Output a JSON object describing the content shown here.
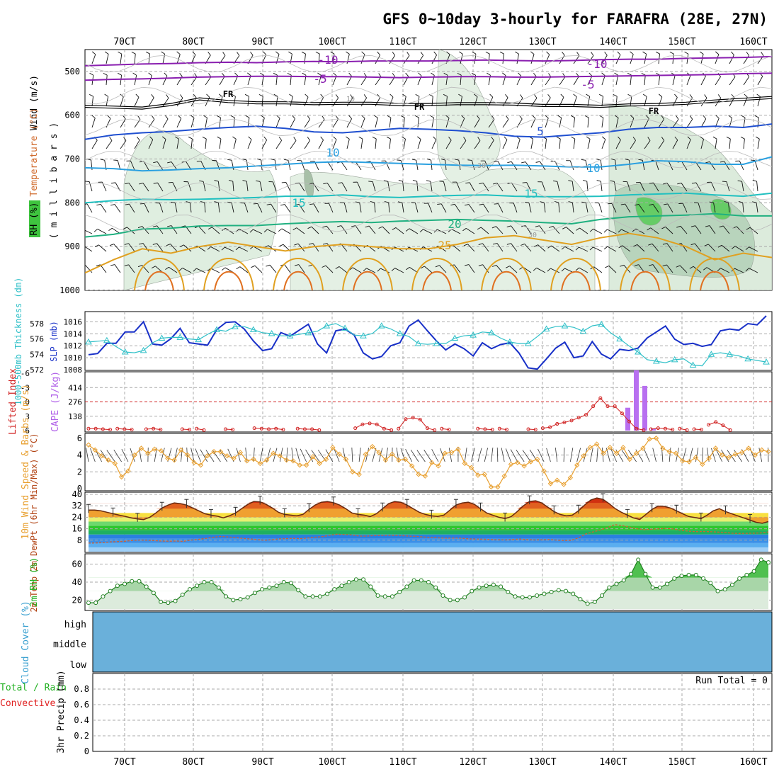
{
  "title": "GFS 0~10day 3-hourly for FARAFRA (28E, 27N)",
  "x_ticks": [
    "70CT",
    "80CT",
    "90CT",
    "100CT",
    "110CT",
    "120CT",
    "130CT",
    "140CT",
    "150CT",
    "160CT"
  ],
  "chart_data": [
    {
      "panel": "upper-air",
      "type": "line",
      "ylabel_parts": [
        "Wind (m/s)",
        "Temperature (°C)",
        "RH (%)"
      ],
      "unit_label": "( m i l l i b a r s )",
      "y_ticks": [
        "500",
        "600",
        "700",
        "800",
        "900",
        "1000"
      ],
      "ylim": [
        1000,
        450
      ],
      "temperature_labels": [
        "-10",
        "-10",
        "-5",
        "-5",
        "FR",
        "FR",
        "FR",
        "5",
        "10",
        "10",
        "15",
        "15",
        "20",
        "25"
      ],
      "rh_labels": [
        "10",
        "30",
        "30"
      ],
      "series": [
        {
          "name": "-10",
          "color": "#8a1fb0",
          "y": [
            487,
            485,
            483,
            482,
            480,
            479,
            480,
            478,
            477,
            478,
            476,
            476,
            476,
            475,
            474,
            475,
            476,
            475,
            473,
            472,
            472,
            470,
            469,
            468,
            466
          ]
        },
        {
          "name": "-5",
          "color": "#8a1fb0",
          "y": [
            520,
            518,
            517,
            515,
            513,
            512,
            511,
            511,
            512,
            512,
            513,
            514,
            513,
            512,
            512,
            513,
            513,
            512,
            511,
            510,
            509,
            508,
            507,
            505,
            504
          ]
        },
        {
          "name": "FR",
          "color": "#000000",
          "y": [
            582,
            584,
            586,
            578,
            565,
            571,
            574,
            574,
            576,
            575,
            575,
            578,
            578,
            576,
            576,
            577,
            580,
            580,
            582,
            579,
            578,
            575,
            570,
            566,
            562
          ]
        },
        {
          "name": "5",
          "color": "#1f4fd0",
          "y": [
            655,
            645,
            640,
            637,
            632,
            628,
            625,
            630,
            638,
            640,
            635,
            630,
            632,
            635,
            640,
            648,
            650,
            645,
            640,
            632,
            628,
            628,
            625,
            628,
            620
          ]
        },
        {
          "name": "10",
          "color": "#2aa0e0",
          "y": [
            720,
            722,
            727,
            725,
            722,
            720,
            716,
            712,
            708,
            706,
            708,
            710,
            712,
            714,
            715,
            714,
            716,
            718,
            718,
            712,
            704,
            706,
            712,
            712,
            695
          ]
        },
        {
          "name": "15",
          "color": "#20c0c0",
          "y": [
            800,
            795,
            792,
            793,
            792,
            790,
            788,
            785,
            785,
            782,
            786,
            788,
            785,
            783,
            782,
            785,
            786,
            786,
            785,
            782,
            780,
            778,
            782,
            785,
            778
          ]
        },
        {
          "name": "20",
          "color": "#20b080",
          "y": [
            878,
            872,
            860,
            858,
            853,
            852,
            852,
            848,
            845,
            843,
            845,
            842,
            840,
            838,
            840,
            842,
            845,
            848,
            838,
            832,
            830,
            828,
            825,
            830,
            830
          ]
        },
        {
          "name": "25",
          "color": "#e0a020",
          "y": [
            960,
            930,
            905,
            915,
            900,
            890,
            900,
            910,
            900,
            895,
            900,
            905,
            905,
            895,
            880,
            875,
            885,
            895,
            880,
            870,
            880,
            900,
            930,
            915,
            925
          ]
        }
      ]
    },
    {
      "panel": "slp-thickness",
      "type": "line",
      "ylabel_left": "1000-500mb Thickness (dm)",
      "ylabel_right": "SLP (mb)",
      "y_ticks_left": [
        "578",
        "576",
        "574",
        "572"
      ],
      "y_ticks_right": [
        "1016",
        "1014",
        "1012",
        "1010",
        "1008"
      ],
      "series": [
        {
          "name": "SLP (mb)",
          "color": "#1830c8",
          "units": "mb",
          "y": [
            1010.5,
            1010.7,
            1012.4,
            1012.4,
            1014.3,
            1014.3,
            1016.0,
            1012.3,
            1012.1,
            1013.2,
            1014.9,
            1012.5,
            1012.3,
            1012.1,
            1014.7,
            1015.9,
            1016.0,
            1014.8,
            1012.8,
            1011.2,
            1011.5,
            1014.2,
            1013.6,
            1014.6,
            1015.6,
            1012.3,
            1010.8,
            1014.5,
            1014.8,
            1013.8,
            1010.8,
            1009.8,
            1010.2,
            1012.0,
            1012.5,
            1015.3,
            1016.3,
            1014.5,
            1012.8,
            1011.3,
            1012.3,
            1011.5,
            1010.3,
            1012.5,
            1011.5,
            1012.2,
            1012.5,
            1010.8,
            1008.3,
            1008.1,
            1009.8,
            1011.6,
            1012.6,
            1010.0,
            1010.3,
            1012.7,
            1010.6,
            1009.8,
            1011.4,
            1011.2,
            1011.6,
            1013.3,
            1014.3,
            1015.3,
            1013.1,
            1012.2,
            1012.4,
            1011.9,
            1012.2,
            1014.5,
            1014.8,
            1014.6,
            1015.7,
            1015.5,
            1017.0
          ]
        },
        {
          "name": "1000-500mb Thickness (dm)",
          "color": "#30c0c8",
          "units": "dm",
          "y": [
            575.6,
            575.7,
            575.8,
            575.0,
            574.3,
            574.2,
            574.5,
            575.5,
            576.1,
            576.2,
            576.2,
            576.0,
            575.9,
            576.6,
            577.2,
            577.0,
            577.6,
            577.6,
            577.2,
            576.8,
            576.7,
            576.4,
            576.4,
            576.6,
            576.8,
            577.0,
            577.7,
            578.0,
            577.4,
            576.5,
            576.4,
            576.7,
            577.7,
            577.3,
            576.7,
            576.3,
            575.4,
            575.3,
            575.4,
            575.4,
            576.1,
            576.4,
            576.5,
            576.9,
            576.8,
            576.1,
            575.6,
            575.4,
            575.4,
            576.3,
            577.3,
            577.6,
            577.7,
            577.5,
            577.0,
            577.7,
            577.9,
            576.8,
            576.0,
            575.1,
            574.3,
            573.3,
            573.1,
            572.9,
            573.3,
            573.4,
            572.6,
            572.5,
            574.0,
            574.2,
            574.0,
            573.8,
            573.4,
            573.2,
            573.0
          ]
        }
      ]
    },
    {
      "panel": "lifted-index-cape",
      "type": "bar",
      "ylabel_left": "Lifted Index",
      "ylabel_right": "CAPE (J/kg)",
      "y_ticks_left": [
        "-6",
        "-3",
        "0",
        "3",
        "6"
      ],
      "y_ticks_right": [
        "414",
        "276",
        "138"
      ],
      "cape_values": [
        [
          143,
          220
        ],
        [
          144,
          580
        ],
        [
          145,
          430
        ],
        [
          146,
          20
        ]
      ],
      "series": [
        {
          "name": "Lifted Index",
          "color": "#d02020",
          "y": [
            5.6,
            5.6,
            5.7,
            5.8,
            5.6,
            5.7,
            5.8,
            5.8,
            5.7,
            5.6,
            5.8,
            5.9,
            5.9,
            5.7,
            5.8,
            5.6,
            5.9,
            5.9,
            5.8,
            5.7,
            5.8,
            5.8,
            5.9,
            5.5,
            5.6,
            5.7,
            5.6,
            5.8,
            5.8,
            5.6,
            5.7,
            5.7,
            5.9,
            5.9,
            5.8,
            5.8,
            5.8,
            5.5,
            4.7,
            4.5,
            4.7,
            5.6,
            5.9,
            5.6,
            3.6,
            3.3,
            3.7,
            5.5,
            5.9,
            5.6,
            5.8,
            5.9,
            5.8,
            5.8,
            5.6,
            5.7,
            5.8,
            5.6,
            5.8,
            5.8,
            5.8,
            5.7,
            5.8,
            5.5,
            5.3,
            4.6,
            4.3,
            3.9,
            3.3,
            2.7,
            0.9,
            -0.8,
            0.9,
            0.9,
            2.4,
            4.1,
            5.6,
            5.9,
            5.7,
            5.5,
            5.6,
            5.8,
            5.6,
            5.9,
            5.7,
            5.8,
            4.8,
            4.2,
            4.9,
            5.9,
            5.9,
            5.9,
            5.8,
            5.8,
            5.8
          ]
        }
      ]
    },
    {
      "panel": "10m-wind",
      "type": "line",
      "ylabel": "10m Wind Speed & Barbs (m/s)",
      "y_ticks": [
        "6",
        "4",
        "2",
        "0"
      ],
      "series": [
        {
          "name": "10m Wind Speed (m/s)",
          "color": "#e8a030",
          "y": [
            5.2,
            4.6,
            3.9,
            3.4,
            3.0,
            1.4,
            2.1,
            4.0,
            4.8,
            4.2,
            4.7,
            4.5,
            3.6,
            3.4,
            4.6,
            4.0,
            3.1,
            2.8,
            3.9,
            4.4,
            4.4,
            3.9,
            3.6,
            4.3,
            3.3,
            3.5,
            3.0,
            3.4,
            4.2,
            3.9,
            3.4,
            3.3,
            2.8,
            2.8,
            3.8,
            3.0,
            3.5,
            4.9,
            4.1,
            3.5,
            2.0,
            1.7,
            4.1,
            5.0,
            4.3,
            3.4,
            4.1,
            3.4,
            3.5,
            2.7,
            1.7,
            1.5,
            3.1,
            2.7,
            4.2,
            4.3,
            4.7,
            3.0,
            2.5,
            1.6,
            1.7,
            0.2,
            0.2,
            1.5,
            2.9,
            3.1,
            2.7,
            3.2,
            3.5,
            2.1,
            0.6,
            1.0,
            0.5,
            1.3,
            2.8,
            3.9,
            4.9,
            5.3,
            4.2,
            4.9,
            4.2,
            4.9,
            3.5,
            4.2,
            4.8,
            5.9,
            6.0,
            4.8,
            4.4,
            4.2,
            3.3,
            3.2,
            3.7,
            2.9,
            3.6,
            4.8,
            4.0,
            3.7,
            4.1,
            4.3,
            4.8,
            4.0,
            4.6,
            4.4
          ]
        }
      ]
    },
    {
      "panel": "2m-temp",
      "type": "area",
      "ylabel": "2m Temp 2m DewPt (6hr Min/Max) (°C)",
      "y_ticks": [
        "40",
        "32",
        "24",
        "16",
        "8"
      ],
      "series": [
        {
          "name": "2m Temp (°C)",
          "color": "#b04010",
          "y": [
            29.0,
            29.0,
            28.5,
            27.5,
            26.5,
            25.5,
            24.6,
            23.5,
            22.8,
            22.4,
            24.0,
            27.0,
            30.5,
            32.5,
            34.0,
            33.5,
            32.5,
            30.5,
            28.5,
            26.5,
            25.5,
            24.8,
            23.6,
            25.0,
            27.0,
            30.0,
            33.0,
            35.0,
            34.8,
            33.0,
            30.5,
            27.5,
            26.0,
            25.5,
            25.0,
            26.0,
            29.5,
            32.5,
            34.5,
            35.0,
            34.2,
            32.5,
            30.0,
            27.0,
            26.0,
            25.5,
            24.5,
            26.5,
            30.0,
            33.5,
            35.0,
            34.5,
            32.5,
            30.0,
            27.5,
            26.0,
            25.0,
            24.6,
            25.5,
            29.0,
            32.5,
            34.0,
            34.5,
            33.0,
            30.0,
            27.0,
            25.5,
            24.0,
            23.0,
            24.5,
            28.0,
            32.0,
            35.0,
            35.5,
            34.0,
            31.0,
            28.0,
            26.0,
            25.0,
            25.5,
            28.5,
            32.5,
            36.0,
            37.5,
            36.5,
            33.5,
            30.0,
            27.5,
            25.5,
            23.5,
            22.5,
            26.0,
            29.5,
            31.8,
            31.6,
            30.5,
            28.5,
            26.5,
            24.5,
            23.8,
            23.0,
            25.5,
            28.5,
            30.0,
            28.0,
            26.5,
            25.0,
            23.5,
            22.0,
            20.5,
            19.8,
            21.0
          ]
        },
        {
          "name": "2m DewPt (°C)",
          "color": "#d06030",
          "y": [
            6.0,
            6.1,
            6.3,
            6.8,
            7.0,
            7.3,
            7.8,
            8.1,
            8.0,
            7.7,
            7.4,
            7.3,
            7.4,
            7.2,
            8.1,
            8.6,
            9.2,
            10.0,
            10.6,
            10.3,
            9.9,
            9.3,
            8.9,
            8.5,
            8.0,
            8.3,
            8.9,
            9.1,
            9.3,
            9.1,
            9.5,
            10.1,
            10.5,
            11.4,
            12.2,
            11.9,
            11.7,
            10.9,
            10.8,
            11.2,
            11.3,
            11.4,
            11.3,
            11.1,
            10.8,
            10.6,
            10.2,
            9.9,
            9.6,
            9.4,
            9.5,
            9.4,
            8.9,
            8.8,
            8.7,
            8.5,
            8.3,
            8.2,
            8.5,
            8.8,
            8.4,
            8.2,
            8.3,
            8.5,
            8.1,
            7.8,
            7.9,
            9.6,
            12.3,
            13.8,
            15.1,
            16.8,
            18.9,
            18.2,
            17.1,
            16.0,
            15.4,
            15.6,
            15.9,
            16.3,
            15.8,
            14.9,
            14.3,
            14.0,
            14.1,
            14.0,
            13.7,
            13.5,
            12.9,
            12.7,
            12.8,
            12.9,
            13.1,
            13.8
          ]
        }
      ]
    },
    {
      "panel": "2m-rh",
      "type": "area",
      "ylabel": "2m RH (%)",
      "y_ticks": [
        "60",
        "40",
        "20"
      ],
      "series": [
        {
          "name": "2m RH (%)",
          "color": "#20b020",
          "y": [
            17,
            17,
            24,
            30,
            36,
            38,
            41,
            41,
            35,
            28,
            18,
            17,
            19,
            26,
            32,
            36,
            40,
            40,
            34,
            24,
            20,
            21,
            23,
            28,
            32,
            34,
            36,
            40,
            39,
            31,
            24,
            24,
            24,
            27,
            32,
            36,
            40,
            43,
            43,
            35,
            25,
            24,
            24,
            29,
            35,
            42,
            42,
            40,
            34,
            25,
            20,
            20,
            23,
            30,
            34,
            36,
            37,
            35,
            29,
            24,
            23,
            23,
            25,
            27,
            29,
            31,
            30,
            27,
            21,
            16,
            18,
            25,
            34,
            38,
            42,
            49,
            65,
            49,
            34,
            34,
            38,
            44,
            47,
            48,
            48,
            44,
            39,
            30,
            32,
            37,
            44,
            48,
            52,
            65,
            62
          ]
        }
      ]
    },
    {
      "panel": "cloud-cover",
      "type": "area",
      "ylabel": "Cloud Cover (%)",
      "y_ticks": [
        "high",
        "middle",
        "low"
      ]
    },
    {
      "panel": "precip",
      "type": "bar",
      "ylabel_parts": [
        "Total / Rain",
        "Convective",
        "3hr Precip (mm)"
      ],
      "y_ticks": [
        "0.8",
        "0.6",
        "0.4",
        "0.2",
        "0"
      ],
      "annotation": "Run Total = 0",
      "values": []
    }
  ]
}
